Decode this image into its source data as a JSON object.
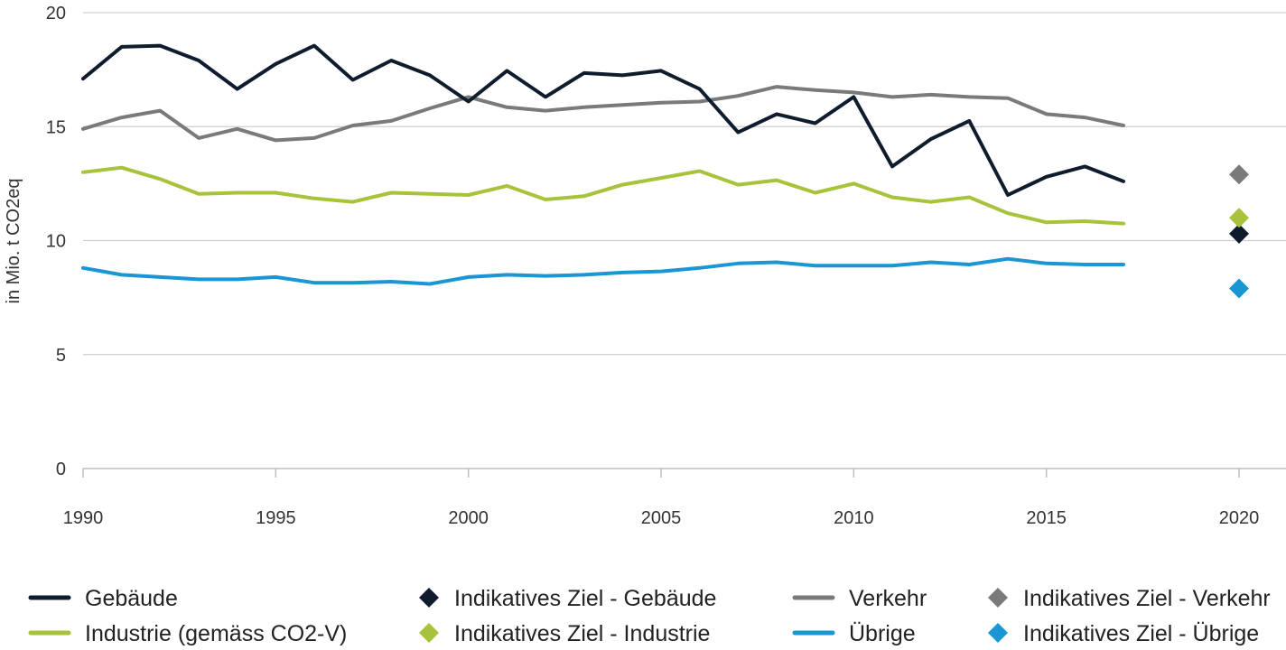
{
  "chart_data": {
    "type": "line",
    "title": "",
    "xlabel": "",
    "ylabel": "in Mio. t CO2eq",
    "xlim": [
      1990,
      2020
    ],
    "ylim": [
      0,
      20
    ],
    "x_ticks": [
      1990,
      1995,
      2000,
      2005,
      2010,
      2015,
      2020
    ],
    "y_ticks": [
      0,
      5,
      10,
      15,
      20
    ],
    "grid": "horizontal",
    "legend_position": "bottom",
    "x": [
      1990,
      1991,
      1992,
      1993,
      1994,
      1995,
      1996,
      1997,
      1998,
      1999,
      2000,
      2001,
      2002,
      2003,
      2004,
      2005,
      2006,
      2007,
      2008,
      2009,
      2010,
      2011,
      2012,
      2013,
      2014,
      2015,
      2016,
      2017
    ],
    "series": [
      {
        "name": "Gebäude",
        "color": "#0f1c2e",
        "values": [
          17.1,
          18.5,
          18.55,
          17.9,
          16.65,
          17.75,
          18.55,
          17.05,
          17.9,
          17.25,
          16.1,
          17.45,
          16.3,
          17.35,
          17.25,
          17.45,
          16.65,
          14.75,
          15.55,
          15.15,
          16.3,
          13.25,
          14.45,
          15.25,
          12.0,
          12.8,
          13.25,
          12.6
        ]
      },
      {
        "name": "Verkehr",
        "color": "#7a7a7a",
        "values": [
          14.9,
          15.4,
          15.7,
          14.5,
          14.9,
          14.4,
          14.5,
          15.05,
          15.25,
          15.8,
          16.3,
          15.85,
          15.7,
          15.85,
          15.95,
          16.05,
          16.1,
          16.35,
          16.75,
          16.6,
          16.5,
          16.3,
          16.4,
          16.3,
          16.25,
          15.55,
          15.4,
          15.05
        ]
      },
      {
        "name": "Industrie (gemäss CO2-V)",
        "color": "#a7c23b",
        "values": [
          13.0,
          13.2,
          12.7,
          12.05,
          12.1,
          12.1,
          11.85,
          11.7,
          12.1,
          12.05,
          12.0,
          12.4,
          11.8,
          11.95,
          12.45,
          12.75,
          13.05,
          12.45,
          12.65,
          12.1,
          12.5,
          11.9,
          11.7,
          11.9,
          11.2,
          10.8,
          10.85,
          10.75
        ]
      },
      {
        "name": "Übrige",
        "color": "#1a96d4",
        "values": [
          8.8,
          8.5,
          8.4,
          8.3,
          8.3,
          8.4,
          8.15,
          8.15,
          8.2,
          8.1,
          8.4,
          8.5,
          8.45,
          8.5,
          8.6,
          8.65,
          8.8,
          9.0,
          9.05,
          8.9,
          8.9,
          8.9,
          9.05,
          8.95,
          9.2,
          9.0,
          8.95,
          8.95
        ]
      }
    ],
    "targets": [
      {
        "name": "Indikatives Ziel - Gebäude",
        "color": "#0f1c2e",
        "x": 2020,
        "value": 10.3
      },
      {
        "name": "Indikatives Ziel - Verkehr",
        "color": "#7a7a7a",
        "x": 2020,
        "value": 12.9
      },
      {
        "name": "Indikatives Ziel - Industrie",
        "color": "#a7c23b",
        "x": 2020,
        "value": 11.0
      },
      {
        "name": "Indikatives Ziel - Übrige",
        "color": "#1a96d4",
        "x": 2020,
        "value": 7.9
      }
    ],
    "legend": [
      {
        "label": "Gebäude",
        "kind": "line",
        "color": "#0f1c2e"
      },
      {
        "label": "Indikatives Ziel - Gebäude",
        "kind": "diamond",
        "color": "#0f1c2e"
      },
      {
        "label": "Verkehr",
        "kind": "line",
        "color": "#7a7a7a"
      },
      {
        "label": "Indikatives Ziel - Verkehr",
        "kind": "diamond",
        "color": "#7a7a7a"
      },
      {
        "label": "Industrie (gemäss CO2-V)",
        "kind": "line",
        "color": "#a7c23b"
      },
      {
        "label": "Indikatives Ziel - Industrie",
        "kind": "diamond",
        "color": "#a7c23b"
      },
      {
        "label": "Übrige",
        "kind": "line",
        "color": "#1a96d4"
      },
      {
        "label": "Indikatives Ziel - Übrige",
        "kind": "diamond",
        "color": "#1a96d4"
      }
    ]
  }
}
